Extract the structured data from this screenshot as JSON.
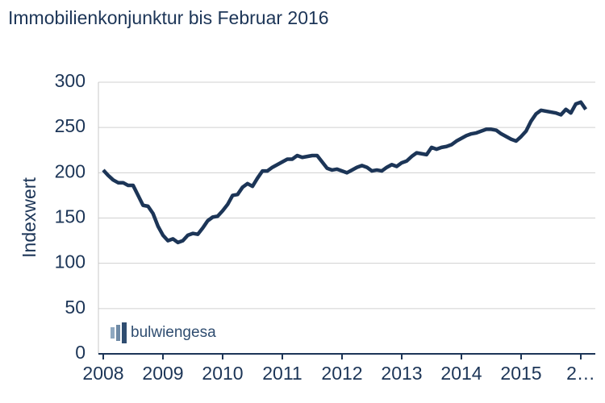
{
  "chart_data": {
    "type": "line",
    "title": "Immobilienkonjunktur bis Februar 2016",
    "y_label": "Indexwert",
    "logo": "bulwiengesa",
    "categories": [
      "2008",
      null,
      null,
      null,
      null,
      null,
      null,
      null,
      null,
      null,
      null,
      null,
      "2009",
      null,
      null,
      null,
      null,
      null,
      null,
      null,
      null,
      null,
      null,
      null,
      "2010",
      null,
      null,
      null,
      null,
      null,
      null,
      null,
      null,
      null,
      null,
      null,
      "2011",
      null,
      null,
      null,
      null,
      null,
      null,
      null,
      null,
      null,
      null,
      null,
      "2012",
      null,
      null,
      null,
      null,
      null,
      null,
      null,
      null,
      null,
      null,
      null,
      "2013",
      null,
      null,
      null,
      null,
      null,
      null,
      null,
      null,
      null,
      null,
      null,
      "2014",
      null,
      null,
      null,
      null,
      null,
      null,
      null,
      null,
      null,
      null,
      null,
      "2015",
      null,
      null,
      null,
      null,
      null,
      null,
      null,
      null,
      null,
      null,
      null,
      "2…",
      null
    ],
    "series": [
      {
        "name": "Indexwert",
        "color": "#1c3557",
        "values": [
          203,
          197,
          192,
          189,
          189,
          186,
          186,
          175,
          164,
          163,
          155,
          141,
          131,
          125,
          127,
          123,
          125,
          131,
          133,
          132,
          139,
          147,
          151,
          152,
          158,
          165,
          175,
          176,
          184,
          188,
          185,
          194,
          202,
          202,
          206,
          209,
          212,
          215,
          215,
          219,
          217,
          218,
          219,
          219,
          212,
          205,
          203,
          204,
          202,
          200,
          203,
          206,
          208,
          206,
          202,
          203,
          202,
          206,
          209,
          207,
          211,
          213,
          218,
          222,
          221,
          220,
          228,
          226,
          228,
          229,
          231,
          235,
          238,
          241,
          243,
          244,
          246,
          248,
          248,
          247,
          243,
          240,
          237,
          235,
          240,
          246,
          257,
          265,
          269,
          268,
          267,
          266,
          264,
          270,
          266,
          276,
          278,
          270
        ]
      }
    ],
    "ylim": [
      0,
      300
    ],
    "yticks": [
      0,
      50,
      100,
      150,
      200,
      250,
      300
    ],
    "grid": true
  }
}
